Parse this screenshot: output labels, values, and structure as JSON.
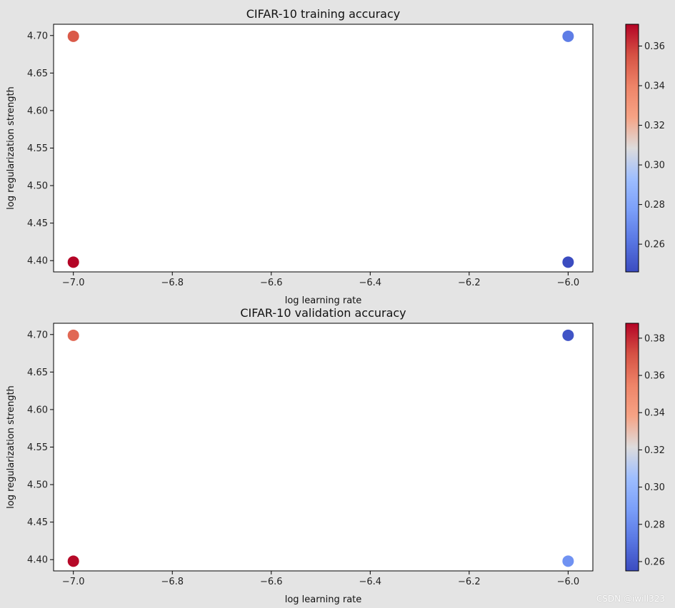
{
  "watermark": "CSDN @iwill323",
  "chart_data": [
    {
      "type": "scatter",
      "title": "CIFAR-10 training accuracy",
      "xlabel": "log learning rate",
      "ylabel": "log regularization strength",
      "xlim": [
        -7.04,
        -5.95
      ],
      "ylim": [
        4.385,
        4.715
      ],
      "xticks": [
        -7.0,
        -6.8,
        -6.6,
        -6.4,
        -6.2,
        -6.0
      ],
      "xtick_labels": [
        "−7.0",
        "−6.8",
        "−6.6",
        "−6.4",
        "−6.2",
        "−6.0"
      ],
      "yticks": [
        4.4,
        4.45,
        4.5,
        4.55,
        4.6,
        4.65,
        4.7
      ],
      "ytick_labels": [
        "4.40",
        "4.45",
        "4.50",
        "4.55",
        "4.60",
        "4.65",
        "4.70"
      ],
      "points": [
        {
          "x": -7.0,
          "y": 4.699,
          "value": 0.353
        },
        {
          "x": -7.0,
          "y": 4.398,
          "value": 0.371
        },
        {
          "x": -6.0,
          "y": 4.699,
          "value": 0.264
        },
        {
          "x": -6.0,
          "y": 4.398,
          "value": 0.246
        }
      ],
      "colormap": "coolwarm",
      "colorbar": {
        "vmin": 0.246,
        "vmax": 0.371,
        "ticks": [
          0.26,
          0.28,
          0.3,
          0.32,
          0.34,
          0.36
        ],
        "tick_labels": [
          "0.26",
          "0.28",
          "0.30",
          "0.32",
          "0.34",
          "0.36"
        ]
      },
      "grid": false
    },
    {
      "type": "scatter",
      "title": "CIFAR-10 validation accuracy",
      "xlabel": "log learning rate",
      "ylabel": "log regularization strength",
      "xlim": [
        -7.04,
        -5.95
      ],
      "ylim": [
        4.385,
        4.715
      ],
      "xticks": [
        -7.0,
        -6.8,
        -6.6,
        -6.4,
        -6.2,
        -6.0
      ],
      "xtick_labels": [
        "−7.0",
        "−6.8",
        "−6.6",
        "−6.4",
        "−6.2",
        "−6.0"
      ],
      "yticks": [
        4.4,
        4.45,
        4.5,
        4.55,
        4.6,
        4.65,
        4.7
      ],
      "ytick_labels": [
        "4.40",
        "4.45",
        "4.50",
        "4.55",
        "4.60",
        "4.65",
        "4.70"
      ],
      "points": [
        {
          "x": -7.0,
          "y": 4.699,
          "value": 0.364
        },
        {
          "x": -7.0,
          "y": 4.398,
          "value": 0.387
        },
        {
          "x": -6.0,
          "y": 4.699,
          "value": 0.258
        },
        {
          "x": -6.0,
          "y": 4.398,
          "value": 0.283
        }
      ],
      "colormap": "coolwarm",
      "colorbar": {
        "vmin": 0.255,
        "vmax": 0.388,
        "ticks": [
          0.26,
          0.28,
          0.3,
          0.32,
          0.34,
          0.36,
          0.38
        ],
        "tick_labels": [
          "0.26",
          "0.28",
          "0.30",
          "0.32",
          "0.34",
          "0.36",
          "0.38"
        ]
      },
      "grid": false
    }
  ]
}
